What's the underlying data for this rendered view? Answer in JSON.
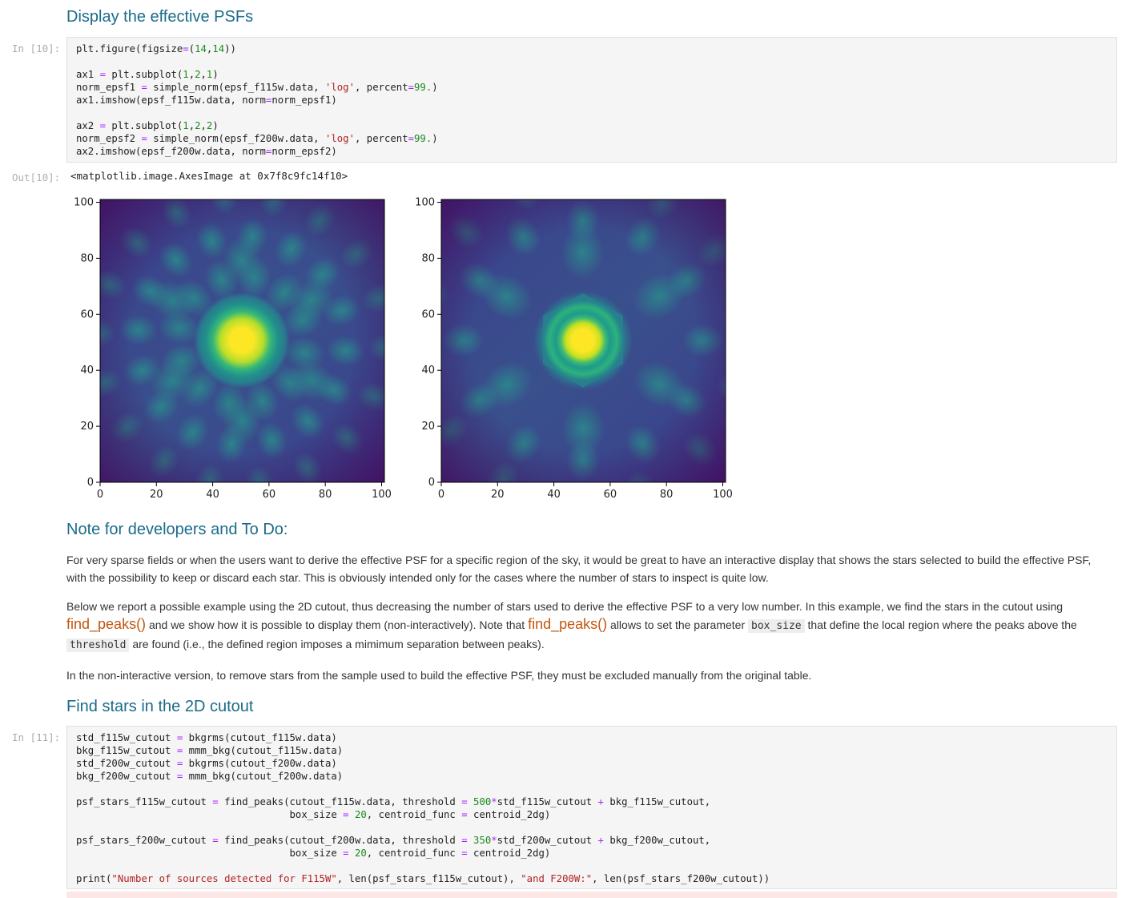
{
  "headings": {
    "display_psfs": "Display the effective PSFs",
    "dev_notes": "Note for developers and To Do:",
    "find_stars": "Find stars in the 2D cutout"
  },
  "cell10": {
    "prompt_in": "In [10]:",
    "prompt_out": "Out[10]:",
    "output_text": "<matplotlib.image.AxesImage at 0x7f8c9fc14f10>",
    "code_lines": [
      "plt.figure(figsize=(14,14))",
      "",
      "ax1 = plt.subplot(1,2,1)",
      "norm_epsf1 = simple_norm(epsf_f115w.data, 'log', percent=99.)",
      "ax1.imshow(epsf_f115w.data, norm=norm_epsf1)",
      "",
      "ax2 = plt.subplot(1,2,2)",
      "norm_epsf2 = simple_norm(epsf_f200w.data, 'log', percent=99.)",
      "ax2.imshow(epsf_f200w.data, norm=norm_epsf2)"
    ]
  },
  "chart_data": [
    {
      "type": "heatmap",
      "title": "",
      "xlabel": "",
      "ylabel": "",
      "xlim": [
        0,
        101
      ],
      "ylim": [
        0,
        101
      ],
      "x_ticks": [
        "0",
        "20",
        "40",
        "60",
        "80",
        "100"
      ],
      "y_ticks": [
        "0",
        "20",
        "40",
        "60",
        "80",
        "100"
      ],
      "colormap": "viridis",
      "peak_center": [
        50,
        50
      ],
      "pattern": "bright core with diffraction spikes (F115W ePSF)"
    },
    {
      "type": "heatmap",
      "title": "",
      "xlabel": "",
      "ylabel": "",
      "xlim": [
        0,
        101
      ],
      "ylim": [
        0,
        101
      ],
      "x_ticks": [
        "0",
        "20",
        "40",
        "60",
        "80",
        "100"
      ],
      "y_ticks": [
        "0",
        "20",
        "40",
        "60",
        "80",
        "100"
      ],
      "colormap": "viridis",
      "peak_center": [
        50,
        50
      ],
      "pattern": "bright core with hexagonal ring (F200W ePSF)"
    }
  ],
  "notes": {
    "p1": "For very sparse fields or when the users want to derive the effective PSF for a specific region of the sky, it would be great to have an interactive display that shows the stars selected to build the effective PSF, with the possibility to keep or discard each star. This is obviously intended only for the cases where the number of stars to inspect is quite low.",
    "p2_a": "Below we report a possible example using the 2D cutout, thus decreasing the number of stars used to derive the effective PSF to a very low number. In this example, we find the stars in the cutout using",
    "p2_link1": "find_peaks()",
    "p2_b": "and we show how it is possible to display them (non-interactively). Note that",
    "p2_link2": "find_peaks()",
    "p2_c": "allows to set the parameter",
    "p2_code1": "box_size",
    "p2_d": "that define the local region where the peaks above the",
    "p2_code2": "threshold",
    "p2_e": "are found (i.e., the defined region imposes a mimimum separation between peaks).",
    "p3": "In the non-interactive version, to remove stars from the sample used to build the effective PSF, they must be excluded manually from the original table."
  },
  "cell11": {
    "prompt_in": "In [11]:",
    "code_lines": [
      "std_f115w_cutout = bkgrms(cutout_f115w.data)",
      "bkg_f115w_cutout = mmm_bkg(cutout_f115w.data)",
      "std_f200w_cutout = bkgrms(cutout_f200w.data)",
      "bkg_f200w_cutout = mmm_bkg(cutout_f200w.data)",
      "",
      "psf_stars_f115w_cutout = find_peaks(cutout_f115w.data, threshold = 500*std_f115w_cutout + bkg_f115w_cutout,",
      "                                    box_size = 20, centroid_func = centroid_2dg)",
      "",
      "psf_stars_f200w_cutout = find_peaks(cutout_f200w.data, threshold = 350*std_f200w_cutout + bkg_f200w_cutout,",
      "                                    box_size = 20, centroid_func = centroid_2dg)",
      "",
      "print(\"Number of sources detected for F115W\", len(psf_stars_f115w_cutout), \"and F200W:\", len(psf_stars_f200w_cutout))"
    ]
  }
}
